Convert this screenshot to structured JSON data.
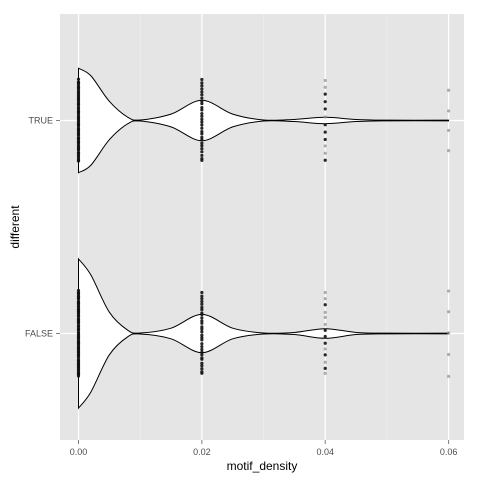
{
  "chart_data": {
    "type": "violin",
    "orientation": "horizontal",
    "xlabel": "motif_density",
    "ylabel": "different",
    "xlim": [
      -0.003,
      0.0625
    ],
    "x_ticks": [
      0.0,
      0.02,
      0.04,
      0.06
    ],
    "x_tick_labels": [
      "0.00",
      "0.02",
      "0.04",
      "0.06"
    ],
    "x_minor_ticks": [
      0.01,
      0.03,
      0.05
    ],
    "categories": [
      "TRUE",
      "FALSE"
    ],
    "grid": true,
    "background_color": "#e5e5e5",
    "grid_color": "#ffffff",
    "violin_fill": "#ffffff",
    "violin_stroke": "#000000",
    "series": [
      {
        "category": "TRUE",
        "density_profile": [
          {
            "x": 0.0,
            "width": 0.49
          },
          {
            "x": 0.002,
            "width": 0.42
          },
          {
            "x": 0.005,
            "width": 0.18
          },
          {
            "x": 0.008,
            "width": 0.03
          },
          {
            "x": 0.01,
            "width": 0.005
          },
          {
            "x": 0.015,
            "width": 0.06
          },
          {
            "x": 0.02,
            "width": 0.19
          },
          {
            "x": 0.025,
            "width": 0.06
          },
          {
            "x": 0.03,
            "width": 0.005
          },
          {
            "x": 0.035,
            "width": 0.01
          },
          {
            "x": 0.04,
            "width": 0.03
          },
          {
            "x": 0.045,
            "width": 0.01
          },
          {
            "x": 0.05,
            "width": 0.003
          },
          {
            "x": 0.06,
            "width": 0.003
          }
        ],
        "points": [
          {
            "x": 0.0,
            "count": 55,
            "spread": 0.38
          },
          {
            "x": 0.02,
            "count": 28,
            "spread": 0.38
          },
          {
            "x": 0.04,
            "count": 12,
            "spread": 0.38
          },
          {
            "x": 0.06,
            "count": 4,
            "spread": 0.28
          }
        ]
      },
      {
        "category": "FALSE",
        "density_profile": [
          {
            "x": 0.0,
            "width": 0.7
          },
          {
            "x": 0.002,
            "width": 0.55
          },
          {
            "x": 0.005,
            "width": 0.2
          },
          {
            "x": 0.008,
            "width": 0.03
          },
          {
            "x": 0.01,
            "width": 0.005
          },
          {
            "x": 0.015,
            "width": 0.05
          },
          {
            "x": 0.02,
            "width": 0.18
          },
          {
            "x": 0.025,
            "width": 0.05
          },
          {
            "x": 0.03,
            "width": 0.005
          },
          {
            "x": 0.035,
            "width": 0.01
          },
          {
            "x": 0.04,
            "width": 0.045
          },
          {
            "x": 0.045,
            "width": 0.01
          },
          {
            "x": 0.05,
            "width": 0.003
          },
          {
            "x": 0.06,
            "width": 0.003
          }
        ],
        "points": [
          {
            "x": 0.0,
            "count": 70,
            "spread": 0.4
          },
          {
            "x": 0.02,
            "count": 30,
            "spread": 0.38
          },
          {
            "x": 0.04,
            "count": 14,
            "spread": 0.38
          },
          {
            "x": 0.06,
            "count": 5,
            "spread": 0.4
          }
        ]
      }
    ]
  }
}
